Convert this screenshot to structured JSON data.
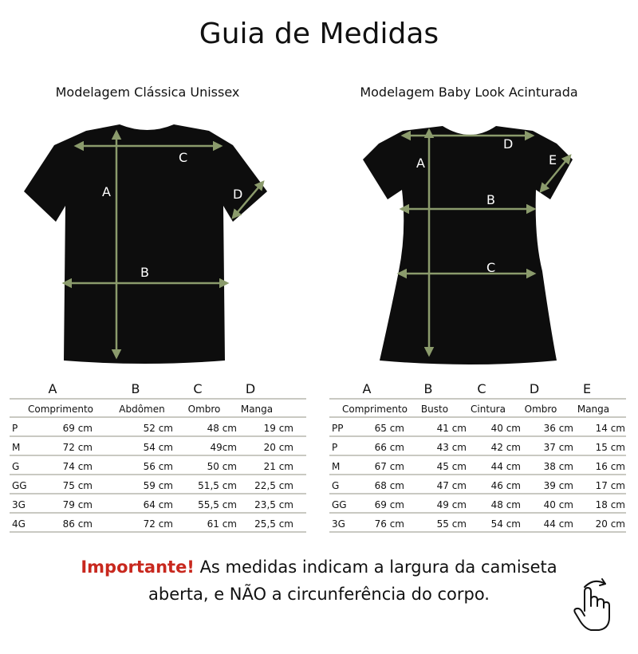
{
  "title": "Guia de Medidas",
  "arrow_color": "#8b9b6c",
  "shirt_color": "#0d0d0d",
  "accent_color": "#c8281e",
  "classic": {
    "subtitle": "Modelagem Clássica Unissex",
    "labels": [
      "A",
      "B",
      "C",
      "D"
    ],
    "letters": [
      "A",
      "B",
      "C",
      "D"
    ],
    "headers": [
      "Comprimento",
      "Abdômen",
      "Ombro",
      "Manga"
    ],
    "rows": [
      {
        "size": "P",
        "values": [
          "69 cm",
          "52 cm",
          "48 cm",
          "19 cm"
        ]
      },
      {
        "size": "M",
        "values": [
          "72 cm",
          "54 cm",
          "49cm",
          "20 cm"
        ]
      },
      {
        "size": "G",
        "values": [
          "74 cm",
          "56 cm",
          "50 cm",
          "21 cm"
        ]
      },
      {
        "size": "GG",
        "values": [
          "75 cm",
          "59 cm",
          "51,5 cm",
          "22,5 cm"
        ]
      },
      {
        "size": "3G",
        "values": [
          "79 cm",
          "64 cm",
          "55,5 cm",
          "23,5 cm"
        ]
      },
      {
        "size": "4G",
        "values": [
          "86 cm",
          "72 cm",
          "61 cm",
          "25,5 cm"
        ]
      }
    ]
  },
  "babylook": {
    "subtitle": "Modelagem Baby Look Acinturada",
    "labels": [
      "A",
      "B",
      "C",
      "D",
      "E"
    ],
    "letters": [
      "A",
      "B",
      "C",
      "D",
      "E"
    ],
    "headers": [
      "Comprimento",
      "Busto",
      "Cintura",
      "Ombro",
      "Manga"
    ],
    "rows": [
      {
        "size": "PP",
        "values": [
          "65 cm",
          "41 cm",
          "40 cm",
          "36 cm",
          "14 cm"
        ]
      },
      {
        "size": "P",
        "values": [
          "66 cm",
          "43 cm",
          "42 cm",
          "37 cm",
          "15 cm"
        ]
      },
      {
        "size": "M",
        "values": [
          "67 cm",
          "45 cm",
          "44 cm",
          "38 cm",
          "16 cm"
        ]
      },
      {
        "size": "G",
        "values": [
          "68 cm",
          "47 cm",
          "46 cm",
          "39 cm",
          "17 cm"
        ]
      },
      {
        "size": "GG",
        "values": [
          "69 cm",
          "49 cm",
          "48 cm",
          "40 cm",
          "18 cm"
        ]
      },
      {
        "size": "3G",
        "values": [
          "76 cm",
          "55 cm",
          "54 cm",
          "44 cm",
          "20 cm"
        ]
      }
    ]
  },
  "note": {
    "important": "Importante!",
    "line1": " As medidas indicam a largura da camiseta",
    "line2": "aberta, e NÃO a circunferência do corpo."
  },
  "icons": {
    "hand": "swipe-hand-icon"
  }
}
